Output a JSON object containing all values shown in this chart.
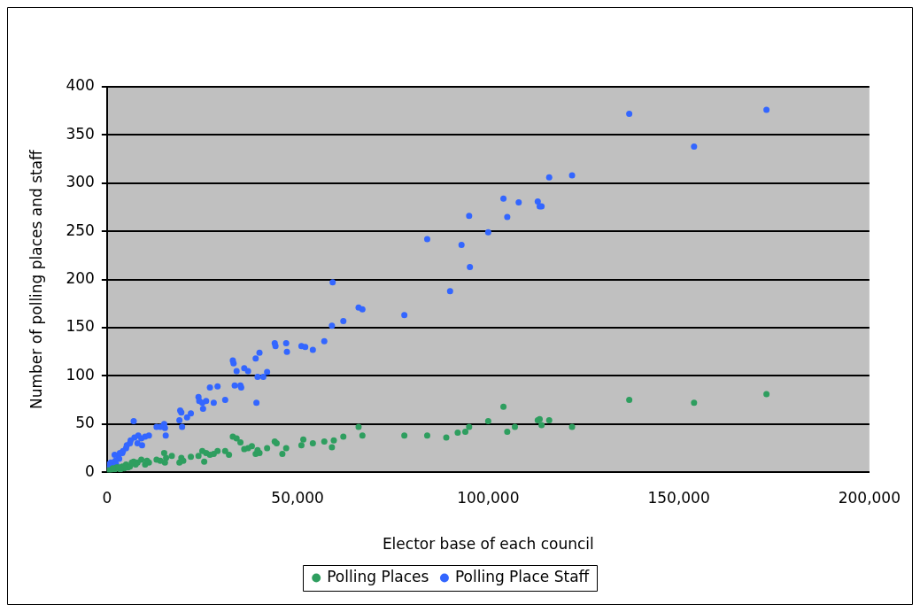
{
  "chart_data": {
    "type": "scatter",
    "xlabel": "Elector base of each council",
    "ylabel": "Number of polling places and staff",
    "xlim": [
      0,
      200000
    ],
    "xticks": [
      0,
      {
        "value": 50000,
        "label": "50,000"
      },
      {
        "value": 100000,
        "label": "100,000"
      },
      {
        "value": 150000,
        "label": "150,000"
      },
      {
        "value": 200000,
        "label": "200,000"
      }
    ],
    "ylim": [
      0,
      400
    ],
    "yticks": [
      0,
      50,
      100,
      150,
      200,
      250,
      300,
      350,
      400
    ],
    "grid": "y",
    "legend": "bottom",
    "marker": "circle",
    "series": [
      {
        "name": "Polling Places",
        "color": "#2e9e5f",
        "x": [
          173000,
          154000,
          137000,
          122000,
          116000,
          114000,
          113000,
          113500,
          107000,
          105000,
          104000,
          100000,
          95000,
          94000,
          92000,
          89000,
          84000,
          78000,
          67000,
          66000,
          62000,
          59000,
          59500,
          57000,
          54000,
          51000,
          51500,
          47000,
          46000,
          44000,
          44500,
          42000,
          40000,
          39000,
          39500,
          38000,
          37000,
          36000,
          35000,
          34000,
          33000,
          32000,
          31000,
          29000,
          28000,
          27000,
          26000,
          25000,
          25500,
          24000,
          22000,
          20000,
          19000,
          19500,
          17000,
          15000,
          15500,
          15200,
          14000,
          13000,
          11000,
          10000,
          10500,
          9000,
          8000,
          7000,
          7500,
          6000,
          6500,
          5000,
          5500,
          4000,
          4500,
          3000,
          3500,
          2000,
          2500,
          1000,
          1500,
          500,
          300
        ],
        "values": [
          81,
          72,
          75,
          47,
          54,
          49,
          54,
          55,
          47,
          42,
          68,
          53,
          47,
          42,
          41,
          36,
          38,
          38,
          38,
          47,
          37,
          26,
          33,
          32,
          30,
          28,
          34,
          25,
          19,
          32,
          30,
          25,
          20,
          19,
          23,
          27,
          25,
          24,
          31,
          35,
          37,
          18,
          22,
          22,
          19,
          18,
          20,
          22,
          11,
          17,
          16,
          12,
          10,
          15,
          17,
          20,
          15,
          10,
          12,
          13,
          10,
          8,
          12,
          13,
          10,
          11,
          8,
          6,
          10,
          8,
          5,
          6,
          4,
          5,
          3,
          3,
          5,
          2,
          4,
          1,
          2
        ]
      },
      {
        "name": "Polling Place Staff",
        "color": "#3366ff",
        "x": [
          173000,
          154000,
          137000,
          122000,
          116000,
          114000,
          113000,
          113500,
          108000,
          105000,
          104000,
          100000,
          95000,
          95200,
          93000,
          90000,
          84000,
          78000,
          67000,
          66000,
          62000,
          59000,
          59200,
          57000,
          54000,
          51000,
          52000,
          47000,
          47200,
          44000,
          44200,
          42000,
          41000,
          40000,
          39000,
          39200,
          39500,
          37000,
          36000,
          35000,
          35200,
          34000,
          33000,
          33200,
          33500,
          31000,
          29000,
          28000,
          27000,
          26000,
          25000,
          25200,
          24000,
          24200,
          22000,
          21000,
          19000,
          19200,
          19500,
          19700,
          15000,
          15200,
          15400,
          14000,
          13000,
          10000,
          9000,
          8000,
          8200,
          7000,
          7200,
          6000,
          5000,
          5200,
          4000,
          4200,
          3000,
          3200,
          2000,
          2200,
          1000,
          1200,
          500,
          300,
          6200,
          9200,
          11000,
          3400,
          2400
        ],
        "values": [
          376,
          338,
          372,
          308,
          306,
          276,
          281,
          276,
          280,
          265,
          284,
          249,
          266,
          213,
          236,
          188,
          242,
          163,
          169,
          171,
          157,
          152,
          197,
          136,
          127,
          131,
          130,
          134,
          125,
          134,
          131,
          104,
          99,
          124,
          118,
          72,
          99,
          105,
          108,
          90,
          88,
          105,
          116,
          113,
          90,
          75,
          89,
          72,
          88,
          74,
          72,
          66,
          78,
          74,
          61,
          57,
          54,
          64,
          62,
          47,
          50,
          46,
          38,
          47,
          47,
          37,
          35,
          30,
          38,
          53,
          36,
          30,
          25,
          28,
          20,
          22,
          17,
          14,
          18,
          12,
          10,
          6,
          4,
          8,
          33,
          28,
          38,
          20,
          8
        ]
      }
    ]
  }
}
